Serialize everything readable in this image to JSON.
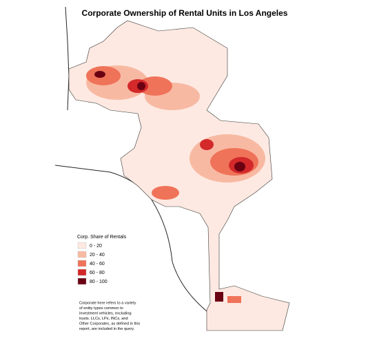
{
  "title": "Corporate Ownership of Rental Units in Los Angeles",
  "legend": {
    "title": "Corp. Share of Rentals",
    "items": [
      {
        "label": "0 - 20",
        "color": "#fde9e1"
      },
      {
        "label": "20 - 40",
        "color": "#f8b9a3"
      },
      {
        "label": "40 - 60",
        "color": "#ef7359"
      },
      {
        "label": "60 - 80",
        "color": "#d3292a"
      },
      {
        "label": "80 - 100",
        "color": "#6a0012"
      }
    ]
  },
  "note": [
    "Corporate here refers to a variety",
    "of entity types common to",
    "investment vehicles, excluding",
    "trusts. LLCs, LPs, INCs, and",
    "Other Corporates, as defined in this",
    "report, are included in the query."
  ]
}
